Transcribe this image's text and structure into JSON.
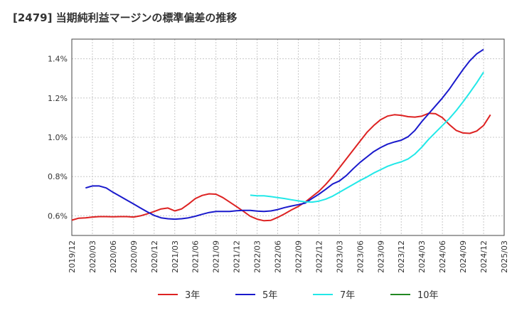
{
  "chart_data": {
    "type": "line",
    "title": "[2479]  当期純利益マージンの標準偏差の推移",
    "xlabel": "",
    "ylabel": "",
    "x_ticks": [
      "2019/12",
      "2020/03",
      "2020/06",
      "2020/09",
      "2020/12",
      "2021/03",
      "2021/06",
      "2021/09",
      "2021/12",
      "2022/03",
      "2022/06",
      "2022/09",
      "2022/12",
      "2023/03",
      "2023/06",
      "2023/09",
      "2023/12",
      "2024/03",
      "2024/06",
      "2024/09",
      "2024/12",
      "2025/03"
    ],
    "y_ticks": [
      {
        "value": 0.6,
        "label": "0.6%"
      },
      {
        "value": 0.8,
        "label": "0.8%"
      },
      {
        "value": 1.0,
        "label": "1.0%"
      },
      {
        "value": 1.2,
        "label": "1.2%"
      },
      {
        "value": 1.4,
        "label": "1.4%"
      }
    ],
    "ylim": [
      0.5,
      1.5
    ],
    "grid": true,
    "legend_position": "bottom",
    "series": [
      {
        "name": "3年",
        "color": "#dd2222",
        "points": [
          [
            "2019/12",
            0.578
          ],
          [
            "2020/01",
            0.588
          ],
          [
            "2020/02",
            0.59
          ],
          [
            "2020/03",
            0.594
          ],
          [
            "2020/04",
            0.596
          ],
          [
            "2020/05",
            0.596
          ],
          [
            "2020/06",
            0.595
          ],
          [
            "2020/07",
            0.596
          ],
          [
            "2020/08",
            0.596
          ],
          [
            "2020/09",
            0.594
          ],
          [
            "2020/10",
            0.6
          ],
          [
            "2020/11",
            0.61
          ],
          [
            "2020/12",
            0.622
          ],
          [
            "2021/01",
            0.635
          ],
          [
            "2021/02",
            0.64
          ],
          [
            "2021/03",
            0.625
          ],
          [
            "2021/04",
            0.635
          ],
          [
            "2021/05",
            0.66
          ],
          [
            "2021/06",
            0.688
          ],
          [
            "2021/07",
            0.704
          ],
          [
            "2021/08",
            0.712
          ],
          [
            "2021/09",
            0.71
          ],
          [
            "2021/10",
            0.693
          ],
          [
            "2021/11",
            0.67
          ],
          [
            "2021/12",
            0.647
          ],
          [
            "2022/01",
            0.623
          ],
          [
            "2022/02",
            0.598
          ],
          [
            "2022/03",
            0.583
          ],
          [
            "2022/04",
            0.575
          ],
          [
            "2022/05",
            0.577
          ],
          [
            "2022/06",
            0.592
          ],
          [
            "2022/07",
            0.61
          ],
          [
            "2022/08",
            0.63
          ],
          [
            "2022/09",
            0.648
          ],
          [
            "2022/10",
            0.67
          ],
          [
            "2022/11",
            0.698
          ],
          [
            "2022/12",
            0.725
          ],
          [
            "2023/01",
            0.76
          ],
          [
            "2023/02",
            0.8
          ],
          [
            "2023/03",
            0.845
          ],
          [
            "2023/04",
            0.89
          ],
          [
            "2023/05",
            0.935
          ],
          [
            "2023/06",
            0.98
          ],
          [
            "2023/07",
            1.025
          ],
          [
            "2023/08",
            1.06
          ],
          [
            "2023/09",
            1.09
          ],
          [
            "2023/10",
            1.108
          ],
          [
            "2023/11",
            1.115
          ],
          [
            "2023/12",
            1.112
          ],
          [
            "2024/01",
            1.105
          ],
          [
            "2024/02",
            1.103
          ],
          [
            "2024/03",
            1.108
          ],
          [
            "2024/04",
            1.122
          ],
          [
            "2024/05",
            1.12
          ],
          [
            "2024/06",
            1.1
          ],
          [
            "2024/07",
            1.065
          ],
          [
            "2024/08",
            1.035
          ],
          [
            "2024/09",
            1.022
          ],
          [
            "2024/10",
            1.02
          ],
          [
            "2024/11",
            1.032
          ],
          [
            "2024/12",
            1.06
          ],
          [
            "2025/01",
            1.115
          ]
        ]
      },
      {
        "name": "5年",
        "color": "#1a1acc",
        "points": [
          [
            "2020/02",
            0.742
          ],
          [
            "2020/03",
            0.752
          ],
          [
            "2020/04",
            0.752
          ],
          [
            "2020/05",
            0.742
          ],
          [
            "2020/06",
            0.72
          ],
          [
            "2020/07",
            0.7
          ],
          [
            "2020/08",
            0.68
          ],
          [
            "2020/09",
            0.66
          ],
          [
            "2020/10",
            0.64
          ],
          [
            "2020/11",
            0.62
          ],
          [
            "2020/12",
            0.602
          ],
          [
            "2021/01",
            0.59
          ],
          [
            "2021/02",
            0.585
          ],
          [
            "2021/03",
            0.583
          ],
          [
            "2021/04",
            0.585
          ],
          [
            "2021/05",
            0.59
          ],
          [
            "2021/06",
            0.598
          ],
          [
            "2021/07",
            0.608
          ],
          [
            "2021/08",
            0.617
          ],
          [
            "2021/09",
            0.622
          ],
          [
            "2021/10",
            0.622
          ],
          [
            "2021/11",
            0.622
          ],
          [
            "2021/12",
            0.626
          ],
          [
            "2022/01",
            0.628
          ],
          [
            "2022/02",
            0.628
          ],
          [
            "2022/03",
            0.624
          ],
          [
            "2022/04",
            0.622
          ],
          [
            "2022/05",
            0.625
          ],
          [
            "2022/06",
            0.632
          ],
          [
            "2022/07",
            0.642
          ],
          [
            "2022/08",
            0.65
          ],
          [
            "2022/09",
            0.657
          ],
          [
            "2022/10",
            0.665
          ],
          [
            "2022/11",
            0.688
          ],
          [
            "2022/12",
            0.71
          ],
          [
            "2023/01",
            0.735
          ],
          [
            "2023/02",
            0.762
          ],
          [
            "2023/03",
            0.778
          ],
          [
            "2023/04",
            0.805
          ],
          [
            "2023/05",
            0.84
          ],
          [
            "2023/06",
            0.872
          ],
          [
            "2023/07",
            0.9
          ],
          [
            "2023/08",
            0.927
          ],
          [
            "2023/09",
            0.948
          ],
          [
            "2023/10",
            0.965
          ],
          [
            "2023/11",
            0.976
          ],
          [
            "2023/12",
            0.985
          ],
          [
            "2024/01",
            1.003
          ],
          [
            "2024/02",
            1.035
          ],
          [
            "2024/03",
            1.08
          ],
          [
            "2024/04",
            1.12
          ],
          [
            "2024/05",
            1.16
          ],
          [
            "2024/06",
            1.2
          ],
          [
            "2024/07",
            1.245
          ],
          [
            "2024/08",
            1.295
          ],
          [
            "2024/09",
            1.345
          ],
          [
            "2024/10",
            1.39
          ],
          [
            "2024/11",
            1.425
          ],
          [
            "2024/12",
            1.448
          ]
        ]
      },
      {
        "name": "7年",
        "color": "#22e8e8",
        "points": [
          [
            "2022/02",
            0.705
          ],
          [
            "2022/03",
            0.702
          ],
          [
            "2022/04",
            0.702
          ],
          [
            "2022/05",
            0.698
          ],
          [
            "2022/06",
            0.693
          ],
          [
            "2022/07",
            0.688
          ],
          [
            "2022/08",
            0.682
          ],
          [
            "2022/09",
            0.676
          ],
          [
            "2022/10",
            0.671
          ],
          [
            "2022/11",
            0.67
          ],
          [
            "2022/12",
            0.675
          ],
          [
            "2023/01",
            0.685
          ],
          [
            "2023/02",
            0.7
          ],
          [
            "2023/03",
            0.72
          ],
          [
            "2023/04",
            0.74
          ],
          [
            "2023/05",
            0.76
          ],
          [
            "2023/06",
            0.78
          ],
          [
            "2023/07",
            0.798
          ],
          [
            "2023/08",
            0.818
          ],
          [
            "2023/09",
            0.835
          ],
          [
            "2023/10",
            0.852
          ],
          [
            "2023/11",
            0.865
          ],
          [
            "2023/12",
            0.875
          ],
          [
            "2024/01",
            0.89
          ],
          [
            "2024/02",
            0.915
          ],
          [
            "2024/03",
            0.95
          ],
          [
            "2024/04",
            0.99
          ],
          [
            "2024/05",
            1.025
          ],
          [
            "2024/06",
            1.06
          ],
          [
            "2024/07",
            1.095
          ],
          [
            "2024/08",
            1.135
          ],
          [
            "2024/09",
            1.18
          ],
          [
            "2024/10",
            1.228
          ],
          [
            "2024/11",
            1.278
          ],
          [
            "2024/12",
            1.332
          ]
        ]
      },
      {
        "name": "10年",
        "color": "#228822",
        "points": []
      }
    ]
  }
}
